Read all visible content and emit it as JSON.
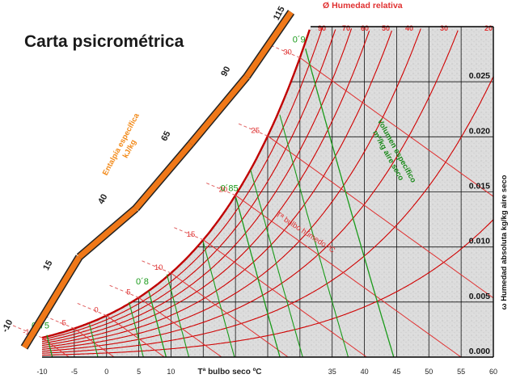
{
  "title": "Carta psicrométrica",
  "x_axis_label": "Tª bulbo seco ºC",
  "y_axis_label": "ω Humedad absoluta kg/kg aire seco",
  "rh_label": "Ø Humedad relativa",
  "enthalpy_label": [
    "Entalpía específica",
    "kJ/kg"
  ],
  "volume_label": [
    "Volumen específico",
    "m³/kg aire seco"
  ],
  "wetbulb_label": "Tª bulbo húmedo ºC",
  "chart_data": {
    "type": "line",
    "title": "Carta psicrométrica",
    "xlabel": "Tª bulbo seco ºC",
    "ylabel": "ω Humedad absoluta kg/kg aire seco",
    "xlim": [
      -10,
      60
    ],
    "ylim": [
      0,
      0.03
    ],
    "x_ticks": [
      -10,
      -5,
      0,
      5,
      10,
      35,
      40,
      45,
      50,
      55,
      60
    ],
    "y_ticks": [
      0.0,
      0.005,
      0.01,
      0.015,
      0.02,
      0.025
    ],
    "y_tick_labels": [
      "0.000",
      "0.005",
      "0.010",
      "0.015",
      "0.020",
      "0.025"
    ],
    "grid": true,
    "relative_humidity": {
      "label": "Ø Humedad relativa",
      "values_pct": [
        10,
        20,
        30,
        40,
        50,
        60,
        70,
        80,
        90,
        100
      ],
      "printed_labels": [
        "90",
        "70",
        "60",
        "50",
        "40",
        "30",
        "20"
      ]
    },
    "wet_bulb": {
      "label": "Tª bulbo húmedo ºC",
      "values": [
        -10,
        -5,
        0,
        5,
        10,
        15,
        20,
        25,
        30
      ],
      "printed_labels": [
        "-10",
        "-5",
        "0",
        "5",
        "10",
        "15",
        "20",
        "25",
        "30"
      ]
    },
    "enthalpy": {
      "label": "Entalpía específica kJ/kg",
      "values": [
        -10,
        15,
        40,
        65,
        90,
        115
      ],
      "printed_labels": [
        "-10",
        "15",
        "40",
        "65",
        "90",
        "115"
      ]
    },
    "specific_volume": {
      "label": "Volumen específico m³/kg aire seco",
      "values": [
        0.75,
        0.8,
        0.85,
        0.9
      ],
      "printed_labels": [
        "0´75",
        "0´8",
        "0´85",
        "0´9"
      ]
    }
  }
}
